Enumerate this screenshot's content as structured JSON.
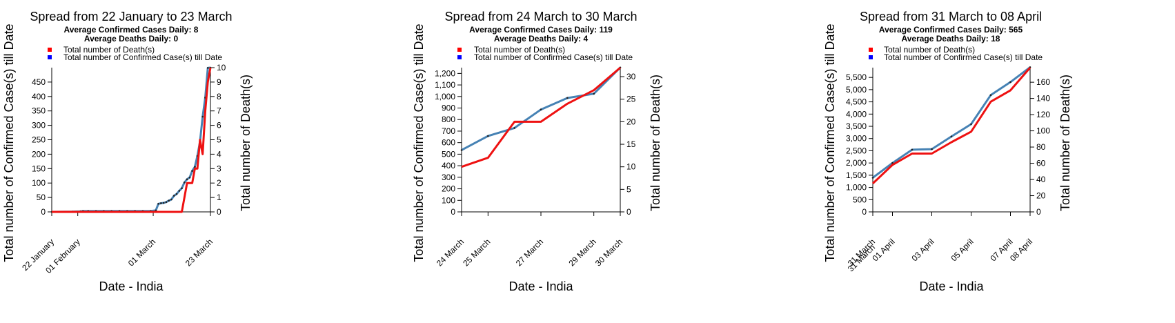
{
  "colors": {
    "deaths": "#ee1111",
    "confirmed": "#4682b4",
    "legend_deaths": "#ff0000",
    "legend_confirmed": "#0000ff"
  },
  "chart_data": [
    {
      "type": "line",
      "title": "Spread from 22 January to 23 March",
      "subtitle_confirmed": "Average Confirmed Cases Daily: 8",
      "subtitle_deaths": "Average Deaths Daily: 0",
      "legend": [
        "Total number of Death(s)",
        "Total number of Confirmed Case(s) till Date"
      ],
      "xlabel": "Date - India",
      "ylabel_left": "Total number of Confirmed Case(s) till Date",
      "ylabel_right": "Total number of Death(s)",
      "ylim_left": [
        0,
        500
      ],
      "ylim_right": [
        0,
        10
      ],
      "yticks_left": [
        0,
        50,
        100,
        150,
        200,
        250,
        300,
        350,
        400,
        450
      ],
      "yticks_left_labels": [
        "0",
        "50",
        "100",
        "150",
        "200",
        "250",
        "300",
        "350",
        "400",
        "450"
      ],
      "yticks_right": [
        0,
        1,
        2,
        3,
        4,
        5,
        6,
        7,
        8,
        9,
        10
      ],
      "yticks_right_labels": [
        "0",
        "1",
        "2",
        "3",
        "4",
        "5",
        "6",
        "7",
        "8",
        "9",
        "10"
      ],
      "xlim": [
        "2020-01-22",
        "2020-03-23"
      ],
      "xticks": [
        "2020-01-22",
        "2020-02-01",
        "2020-03-01",
        "2020-03-23"
      ],
      "xtick_labels": [
        "22 January",
        "01 February",
        "01 March",
        "23 March"
      ],
      "series": [
        {
          "name": "Total number of Confirmed Case(s) till Date",
          "axis": "left",
          "x": [
            "2020-01-22",
            "2020-01-30",
            "2020-02-02",
            "2020-02-03",
            "2020-02-05",
            "2020-02-08",
            "2020-02-11",
            "2020-02-14",
            "2020-02-17",
            "2020-02-20",
            "2020-02-23",
            "2020-02-26",
            "2020-02-29",
            "2020-03-02",
            "2020-03-03",
            "2020-03-04",
            "2020-03-05",
            "2020-03-06",
            "2020-03-07",
            "2020-03-08",
            "2020-03-09",
            "2020-03-10",
            "2020-03-11",
            "2020-03-12",
            "2020-03-13",
            "2020-03-14",
            "2020-03-15",
            "2020-03-16",
            "2020-03-17",
            "2020-03-18",
            "2020-03-19",
            "2020-03-20",
            "2020-03-21",
            "2020-03-22",
            "2020-03-23"
          ],
          "values": [
            0,
            1,
            2,
            3,
            3,
            3,
            3,
            3,
            3,
            3,
            3,
            3,
            3,
            5,
            28,
            30,
            31,
            34,
            39,
            43,
            56,
            62,
            73,
            82,
            102,
            113,
            119,
            142,
            156,
            194,
            244,
            330,
            396,
            499,
            500
          ]
        },
        {
          "name": "Total number of Death(s)",
          "axis": "right",
          "x": [
            "2020-01-22",
            "2020-03-12",
            "2020-03-13",
            "2020-03-14",
            "2020-03-15",
            "2020-03-16",
            "2020-03-17",
            "2020-03-18",
            "2020-03-19",
            "2020-03-20",
            "2020-03-21",
            "2020-03-22",
            "2020-03-23"
          ],
          "values": [
            0,
            0,
            1,
            2,
            2,
            2,
            3,
            3,
            5,
            4,
            7,
            9,
            10
          ]
        }
      ]
    },
    {
      "type": "line",
      "title": "Spread from 24 March to 30 March",
      "subtitle_confirmed": "Average Confirmed Cases Daily: 119",
      "subtitle_deaths": "Average Deaths Daily: 4",
      "legend": [
        "Total number of Death(s)",
        "Total number of Confirmed Case(s) till Date"
      ],
      "xlabel": "Date - India",
      "ylabel_left": "Total number of Confirmed Case(s) till Date",
      "ylabel_right": "Total number of Death(s)",
      "ylim_left": [
        0,
        1250
      ],
      "ylim_right": [
        0,
        32
      ],
      "yticks_left": [
        0,
        100,
        200,
        300,
        400,
        500,
        600,
        700,
        800,
        900,
        1000,
        1100,
        1200
      ],
      "yticks_left_labels": [
        "0",
        "100",
        "200",
        "300",
        "400",
        "500",
        "600",
        "700",
        "800",
        "900",
        "1,000",
        "1,100",
        "1,200"
      ],
      "yticks_right": [
        0,
        5,
        10,
        15,
        20,
        25,
        30
      ],
      "yticks_right_labels": [
        "0",
        "5",
        "10",
        "15",
        "20",
        "25",
        "30"
      ],
      "xlim": [
        "2020-03-24",
        "2020-03-30"
      ],
      "xticks": [
        "2020-03-24",
        "2020-03-25",
        "2020-03-27",
        "2020-03-29",
        "2020-03-30"
      ],
      "xtick_labels": [
        "24 March",
        "25 March",
        "27 March",
        "29 March",
        "30 March"
      ],
      "series": [
        {
          "name": "Total number of Confirmed Case(s) till Date",
          "axis": "left",
          "x": [
            "2020-03-24",
            "2020-03-25",
            "2020-03-26",
            "2020-03-27",
            "2020-03-28",
            "2020-03-29",
            "2020-03-30"
          ],
          "values": [
            536,
            657,
            727,
            887,
            987,
            1024,
            1251
          ]
        },
        {
          "name": "Total number of Death(s)",
          "axis": "right",
          "x": [
            "2020-03-24",
            "2020-03-25",
            "2020-03-26",
            "2020-03-27",
            "2020-03-28",
            "2020-03-29",
            "2020-03-30"
          ],
          "values": [
            10,
            12,
            20,
            20,
            24,
            27,
            32
          ]
        }
      ]
    },
    {
      "type": "line",
      "title": "Spread from 31 March to 08 April",
      "subtitle_confirmed": "Average Confirmed Cases Daily: 565",
      "subtitle_deaths": "Average Deaths Daily: 18",
      "legend": [
        "Total number of Death(s)",
        "Total number of Confirmed Case(s) till Date"
      ],
      "xlabel": "Date - India",
      "ylabel_left": "Total number of Confirmed Case(s) till Date",
      "ylabel_right": "Total number of Death(s)",
      "ylim_left": [
        0,
        5900
      ],
      "ylim_right": [
        0,
        178
      ],
      "yticks_left": [
        0,
        500,
        1000,
        1500,
        2000,
        2500,
        3000,
        3500,
        4000,
        4500,
        5000,
        5500
      ],
      "yticks_left_labels": [
        "0",
        "500",
        "1,000",
        "1,500",
        "2,000",
        "2,500",
        "3,000",
        "3,500",
        "4,000",
        "4,500",
        "5,000",
        "5,500"
      ],
      "yticks_right": [
        0,
        20,
        40,
        60,
        80,
        100,
        120,
        140,
        160
      ],
      "yticks_right_labels": [
        "0",
        "20",
        "40",
        "60",
        "80",
        "100",
        "120",
        "140",
        "160"
      ],
      "xlim": [
        "2020-03-31",
        "2020-04-08"
      ],
      "xticks": [
        "2020-03-31",
        "2020-03-31",
        "2020-04-01",
        "2020-04-03",
        "2020-04-05",
        "2020-04-07",
        "2020-04-08"
      ],
      "xtick_labels": [
        "31 March",
        "31 March",
        "01 April",
        "03 April",
        "05 April",
        "07 April",
        "08 April"
      ],
      "series": [
        {
          "name": "Total number of Confirmed Case(s) till Date",
          "axis": "left",
          "x": [
            "2020-03-31",
            "2020-04-01",
            "2020-04-02",
            "2020-04-03",
            "2020-04-04",
            "2020-04-05",
            "2020-04-06",
            "2020-04-07",
            "2020-04-08"
          ],
          "values": [
            1397,
            1998,
            2543,
            2567,
            3082,
            3588,
            4778,
            5311,
            5916
          ]
        },
        {
          "name": "Total number of Death(s)",
          "axis": "right",
          "x": [
            "2020-03-31",
            "2020-04-01",
            "2020-04-02",
            "2020-04-03",
            "2020-04-04",
            "2020-04-05",
            "2020-04-06",
            "2020-04-07",
            "2020-04-08"
          ],
          "values": [
            35,
            58,
            72,
            72,
            86,
            99,
            136,
            150,
            178
          ]
        }
      ]
    }
  ]
}
